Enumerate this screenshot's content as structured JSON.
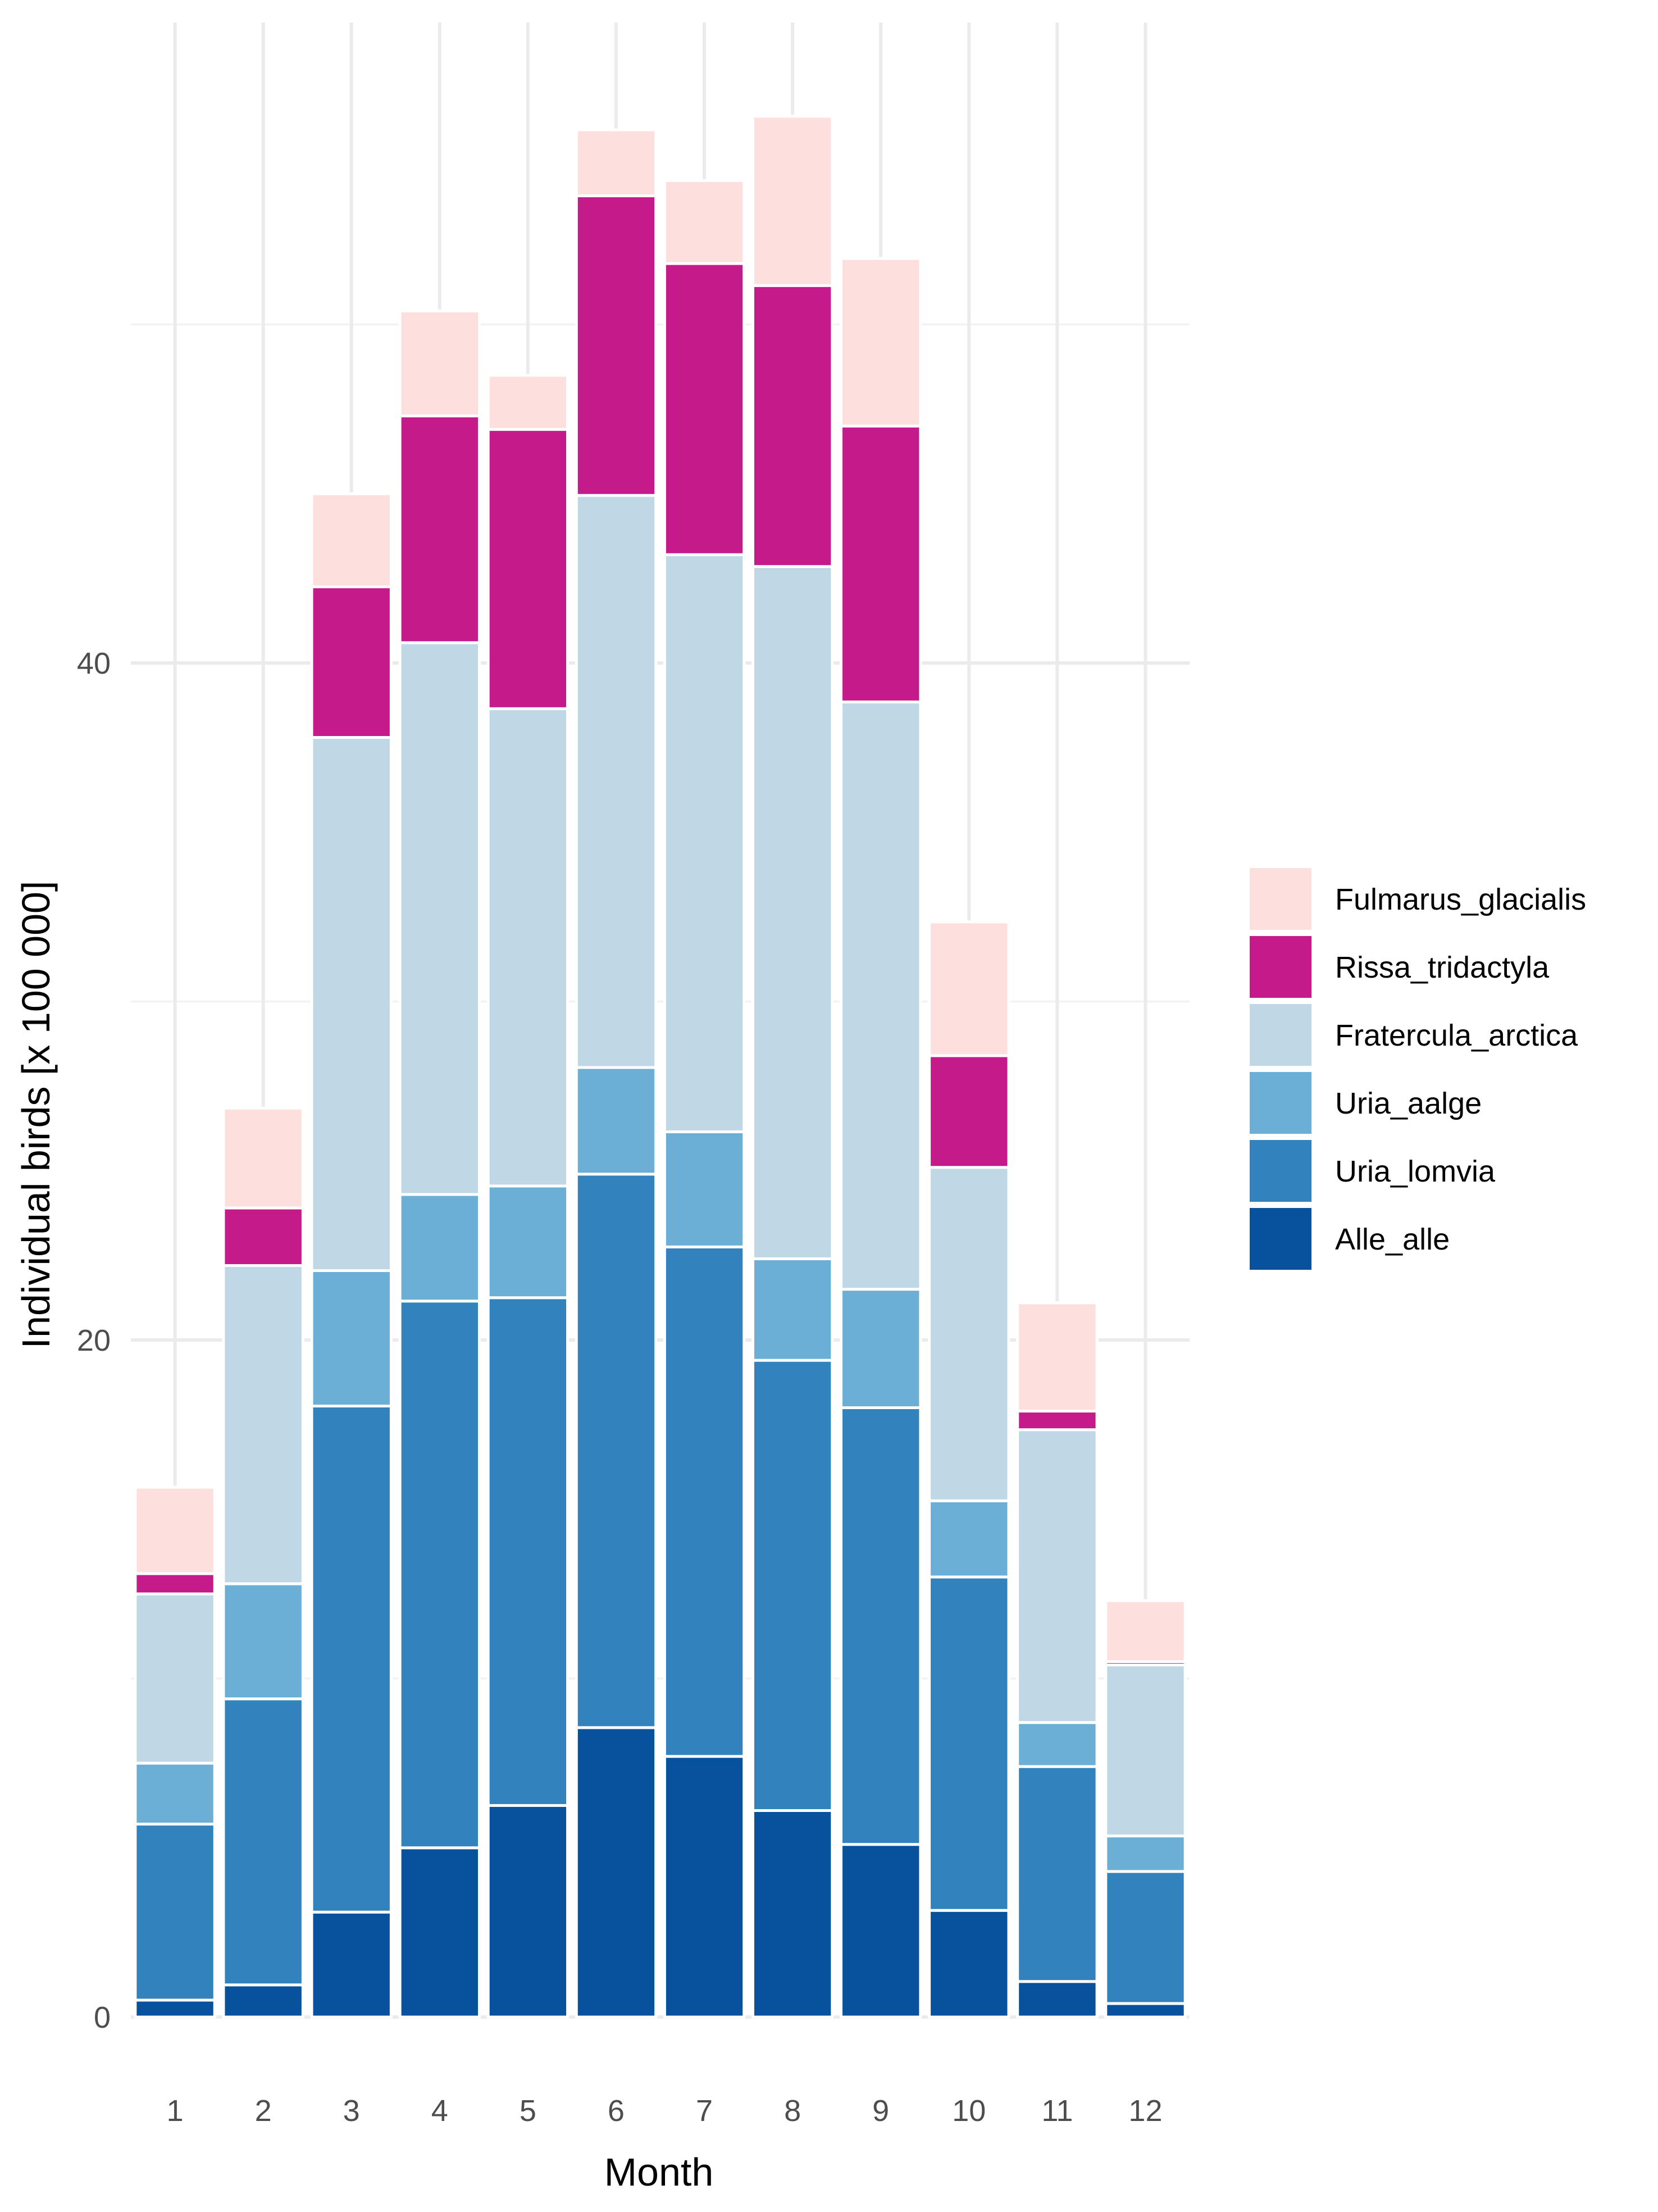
{
  "chart_data": {
    "type": "bar",
    "stacked": true,
    "title": "",
    "xlabel": "Month",
    "ylabel": "Individual birds [x 100 000]",
    "ylim": [
      0,
      56
    ],
    "y_ticks": [
      0,
      20,
      40
    ],
    "grid": true,
    "legend_position": "right",
    "categories": [
      "1",
      "2",
      "3",
      "4",
      "5",
      "6",
      "7",
      "8",
      "9",
      "10",
      "11",
      "12"
    ],
    "series": [
      {
        "name": "Alle_alle",
        "color": "#08519C",
        "values": [
          0.5,
          0.95,
          3.1,
          5.0,
          6.25,
          8.55,
          7.7,
          6.1,
          5.1,
          3.15,
          1.05,
          0.4
        ]
      },
      {
        "name": "Uria_lomvia",
        "color": "#3182BD",
        "values": [
          5.2,
          8.45,
          14.95,
          16.15,
          15.0,
          16.35,
          15.05,
          13.3,
          12.9,
          9.85,
          6.35,
          3.9
        ]
      },
      {
        "name": "Uria_aalge",
        "color": "#6BAED6",
        "values": [
          1.8,
          3.4,
          4.0,
          3.15,
          3.3,
          3.15,
          3.4,
          3.0,
          3.5,
          2.25,
          1.3,
          1.05
        ]
      },
      {
        "name": "Fratercula_arctica",
        "color": "#C0D7E6",
        "values": [
          5.0,
          9.4,
          15.75,
          16.3,
          14.1,
          16.9,
          17.05,
          20.45,
          17.35,
          9.85,
          8.65,
          5.05
        ]
      },
      {
        "name": "Rissa_tridactyla",
        "color": "#C51B8A",
        "values": [
          0.6,
          1.7,
          4.45,
          6.7,
          8.25,
          8.85,
          8.6,
          8.3,
          8.15,
          3.3,
          0.55,
          0.1
        ]
      },
      {
        "name": "Fulmarus_glacialis",
        "color": "#FDE0DD",
        "values": [
          2.55,
          2.95,
          2.75,
          3.1,
          1.6,
          1.95,
          2.45,
          5.0,
          4.95,
          3.95,
          3.2,
          1.8
        ]
      }
    ],
    "legend_order": [
      "Fulmarus_glacialis",
      "Rissa_tridactyla",
      "Fratercula_arctica",
      "Uria_aalge",
      "Uria_lomvia",
      "Alle_alle"
    ]
  }
}
